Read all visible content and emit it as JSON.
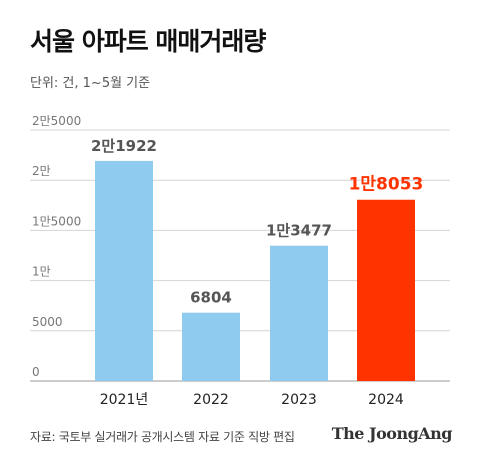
{
  "header": {
    "title": "서울 아파트 매매거래량",
    "unit": "단위: 건, 1~5월 기준"
  },
  "footer": {
    "source": "자료: 국토부 실거래가 공개시스템 자료 기준 직방 편집",
    "brand": "The JoongAng"
  },
  "colors": {
    "bar": "#8ecbef",
    "highlight": "#ff3300",
    "grid": "#d4d4d4",
    "label": "#555555"
  },
  "chart_data": {
    "type": "bar",
    "title": "서울 아파트 매매거래량",
    "categories": [
      "2021년",
      "2022",
      "2023",
      "2024"
    ],
    "values": [
      21922,
      6804,
      13477,
      18053
    ],
    "value_labels": [
      "2만1922",
      "6804",
      "1만3477",
      "1만8053"
    ],
    "highlight_index": 3,
    "ylim": [
      0,
      25000
    ],
    "yticks": [
      0,
      5000,
      10000,
      15000,
      20000,
      25000
    ],
    "ytick_labels": [
      "0",
      "5000",
      "1만",
      "1만5000",
      "2만",
      "2만5000"
    ],
    "grid": true
  }
}
